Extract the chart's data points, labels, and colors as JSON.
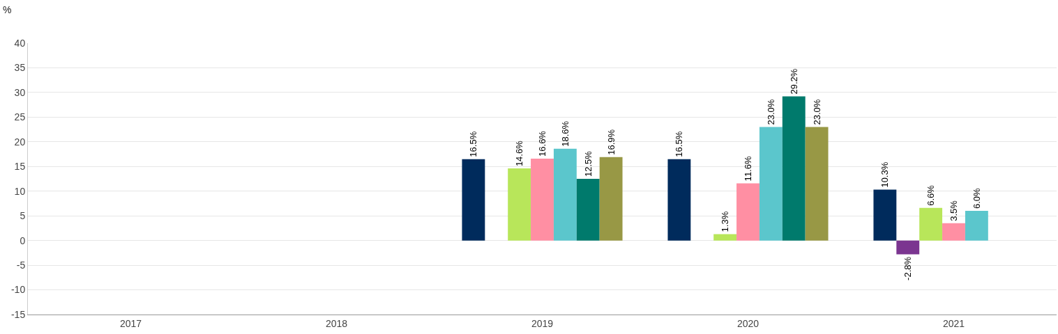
{
  "chart_data": {
    "type": "bar",
    "ylabel": "%",
    "categories": [
      "2017",
      "2018",
      "2019",
      "2020",
      "2021"
    ],
    "ylim": [
      -15,
      40
    ],
    "yticks": [
      -15,
      -10,
      -5,
      0,
      5,
      10,
      15,
      20,
      25,
      30,
      35,
      40
    ],
    "grid": "y",
    "series": [
      {
        "color": "#002b5c",
        "values": [
          null,
          null,
          16.5,
          16.5,
          10.3
        ],
        "value_labels": [
          null,
          null,
          "16.5%",
          "16.5%",
          "10.3%"
        ]
      },
      {
        "color": "#7b3590",
        "values": [
          null,
          null,
          null,
          null,
          -2.8
        ],
        "value_labels": [
          null,
          null,
          null,
          null,
          "-2.8%"
        ]
      },
      {
        "color": "#b8e65a",
        "values": [
          null,
          null,
          14.6,
          1.3,
          6.6
        ],
        "value_labels": [
          null,
          null,
          "14.6%",
          "1.3%",
          "6.6%"
        ]
      },
      {
        "color": "#ff8fa3",
        "values": [
          null,
          null,
          16.6,
          11.6,
          3.5
        ],
        "value_labels": [
          null,
          null,
          "16.6%",
          "11.6%",
          "3.5%"
        ]
      },
      {
        "color": "#5bc6cc",
        "values": [
          null,
          null,
          18.6,
          23.0,
          6.0
        ],
        "value_labels": [
          null,
          null,
          "18.6%",
          "23.0%",
          "6.0%"
        ]
      },
      {
        "color": "#007a6c",
        "values": [
          null,
          null,
          12.5,
          29.2,
          null
        ],
        "value_labels": [
          null,
          null,
          "12.5%",
          "29.2%",
          null
        ]
      },
      {
        "color": "#989845",
        "values": [
          null,
          null,
          16.9,
          23.0,
          null
        ],
        "value_labels": [
          null,
          null,
          "16.9%",
          "23.0%",
          null
        ]
      }
    ]
  }
}
